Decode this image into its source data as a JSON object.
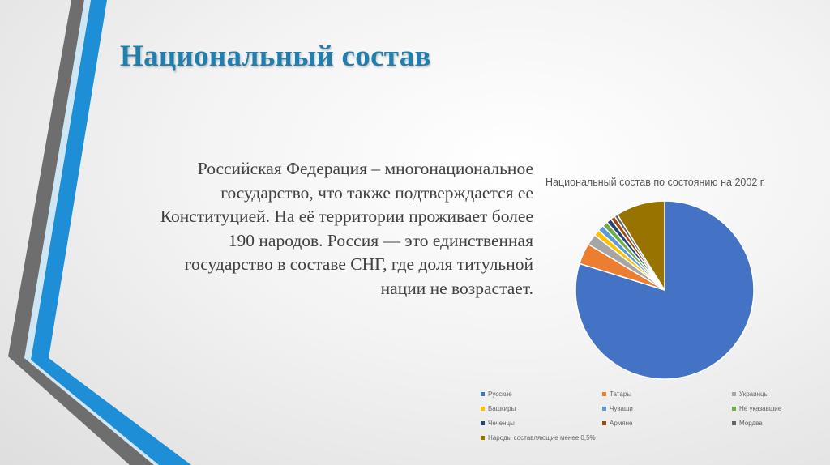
{
  "slide": {
    "title": "Национальный состав",
    "body_lines": [
      "Российская Федерация – многонациональное",
      "государство, что также подтверждается ее",
      "Конституцией. На её территории проживает более",
      "190 народов. Россия — это единственная",
      "государство в составе СНГ, где доля титульной",
      "нации не возрастает."
    ]
  },
  "colors": {
    "title": "#1f7fae",
    "stripe_blue": "#1e8fd6",
    "stripe_gray": "#6e6e6e"
  },
  "chart_data": {
    "type": "pie",
    "title": "Национальный состав по состоянию на 2002 г.",
    "legend_position": "bottom",
    "categories": [
      "Русские",
      "Татары",
      "Украинцы",
      "Башкиры",
      "Чуваши",
      "Не указавшие",
      "Чеченцы",
      "Армяне",
      "Мордва",
      "Народы составляющие менее 0,5%"
    ],
    "values": [
      79.8,
      3.8,
      2.0,
      1.1,
      1.1,
      1.0,
      0.9,
      0.8,
      0.6,
      8.9
    ],
    "colors": [
      "#4472c4",
      "#ed7d31",
      "#a5a5a5",
      "#ffc000",
      "#5b9bd5",
      "#70ad47",
      "#264478",
      "#9e480e",
      "#636363",
      "#997300"
    ]
  }
}
